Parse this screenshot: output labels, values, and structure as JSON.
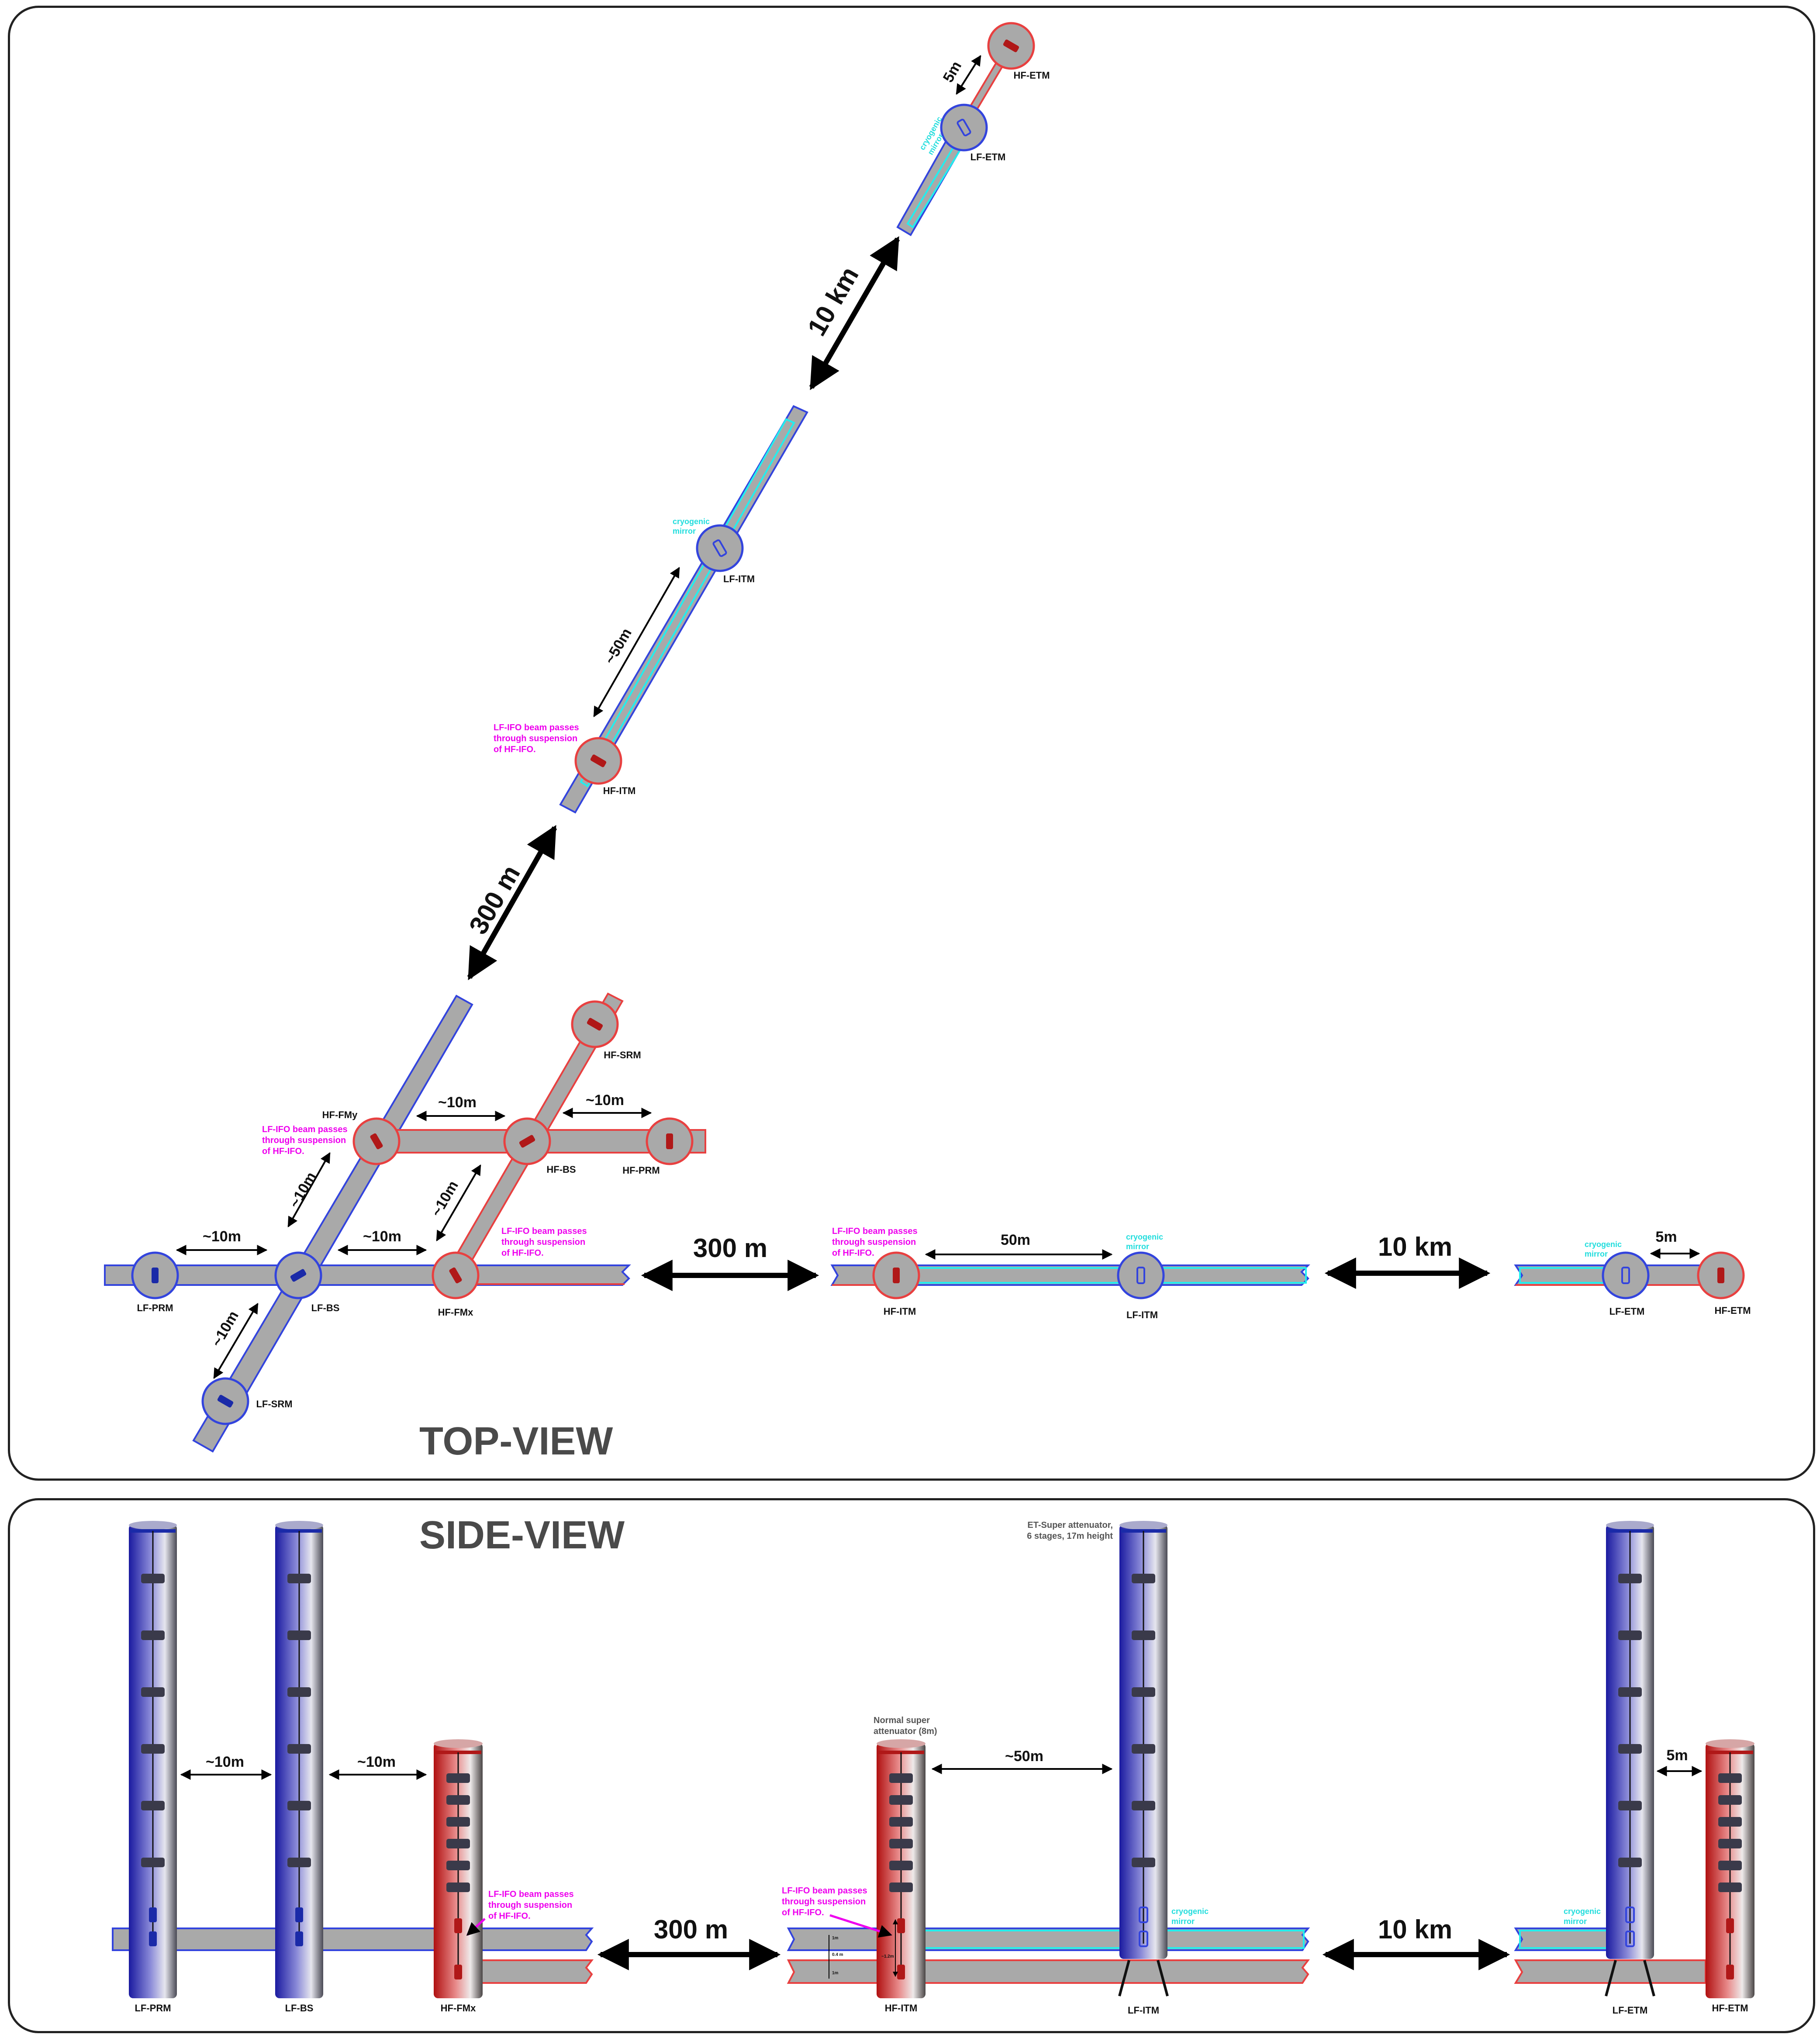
{
  "titles": {
    "top": "TOP-VIEW",
    "side": "SIDE-VIEW"
  },
  "colors": {
    "tube": "#a9a9a9",
    "lf": "#3344dd",
    "hf": "#e84040",
    "cyan": "#22eeee",
    "magenta": "#ee00ee",
    "mirror": "#b01818",
    "lf_mirror": "#1a2aa8",
    "text": "#111111",
    "title": "#4a4a4a"
  },
  "top_view": {
    "mirrors": {
      "lf_prm": "LF-PRM",
      "lf_bs": "LF-BS",
      "lf_srm": "LF-SRM",
      "hf_fmx": "HF-FMx",
      "hf_fmy": "HF-FMy",
      "hf_bs": "HF-BS",
      "hf_prm": "HF-PRM",
      "hf_srm": "HF-SRM",
      "hf_itm": "HF-ITM",
      "lf_itm": "LF-ITM",
      "lf_etm": "LF-ETM",
      "hf_etm": "HF-ETM"
    },
    "distances": {
      "d_10m": "~10m",
      "d_50m_approx": "~50m",
      "d_50m": "50m",
      "d_5m": "5m",
      "d_300m": "300 m",
      "d_10km": "10 km"
    },
    "notes": {
      "cryogenic": [
        "cryogenic",
        "mirror"
      ],
      "beam_pass": [
        "LF-IFO beam passes",
        "through suspension",
        "of HF-IFO."
      ]
    }
  },
  "side_view": {
    "labels": {
      "lf_prm": "LF-PRM",
      "lf_bs": "LF-BS",
      "hf_fmx": "HF-FMx",
      "hf_itm": "HF-ITM",
      "lf_itm": "LF-ITM",
      "lf_etm": "LF-ETM",
      "hf_etm": "HF-ETM"
    },
    "distances": {
      "d_10m": "~10m",
      "d_50m": "~50m",
      "d_5m": "5m",
      "d_300m": "300 m",
      "d_10km": "10 km"
    },
    "notes": {
      "super_att": [
        "ET-Super attenuator,",
        "6 stages, 17m height"
      ],
      "normal_att": [
        "Normal super",
        "attenuator (8m)"
      ],
      "beam_pass": [
        "LF-IFO beam passes",
        "through suspension",
        "of HF-IFO."
      ],
      "cryogenic": [
        "cryogenic",
        "mirror"
      ],
      "dims": [
        "1m",
        "0.4 m",
        "1m",
        "~1.2m"
      ]
    }
  }
}
